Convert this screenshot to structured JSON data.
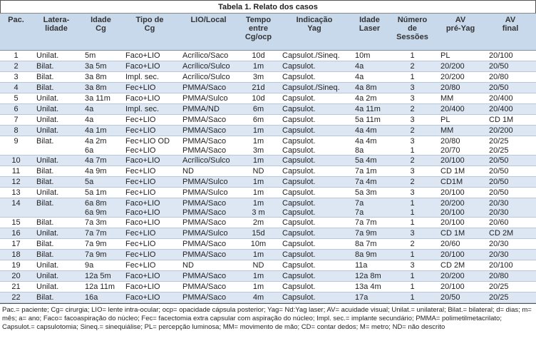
{
  "title": "Tabela 1. Relato dos casos",
  "table": {
    "header": [
      "Pac.",
      "Latera-\nlidade",
      "Idade\nCg",
      "Tipo de\nCg",
      "LIO/Local",
      "Tempo\nentre\nCg/ocp",
      "Indicação\nYag",
      "Idade\nLaser",
      "Número\nde\nSessões",
      "AV\npré-Yag",
      "AV\nfinal"
    ],
    "rows": [
      [
        "1",
        "Unilat.",
        "5m",
        "Faco+LIO",
        "Acrílico/Saco",
        "10d",
        "Capsulot./Sineq.",
        "10m",
        "1",
        "PL",
        "20/100"
      ],
      [
        "2",
        "Bilat.",
        "3a 5m",
        "Faco+LIO",
        "Acrílico/Sulco",
        "1m",
        "Capsulot.",
        "4a",
        "2",
        "20/200",
        "20/50"
      ],
      [
        "3",
        "Bilat.",
        "3a 8m",
        "Impl. sec.",
        "Acrílico/Sulco",
        "3m",
        "Capsulot.",
        "4a",
        "1",
        "20/200",
        "20/80"
      ],
      [
        "4",
        "Bilat.",
        "3a 8m",
        "Fec+LIO",
        "PMMA/Saco",
        "21d",
        "Capsulot./Sineq.",
        "4a 8m",
        "3",
        "20/80",
        "20/50"
      ],
      [
        "5",
        "Unilat.",
        "3a 11m",
        "Faco+LIO",
        "PMMA/Sulco",
        "10d",
        "Capsulot.",
        "4a 2m",
        "3",
        "MM",
        "20/400"
      ],
      [
        "6",
        "Unilat.",
        "4a",
        "Impl. sec.",
        "PMMA/ND",
        "6m",
        "Capsulot.",
        "4a 11m",
        "2",
        "20/400",
        "20/400"
      ],
      [
        "7",
        "Unilat.",
        "4a",
        "Fec+LIO",
        "PMMA/Saco",
        "6m",
        "Capsulot.",
        "5a 11m",
        "3",
        "PL",
        "CD 1M"
      ],
      [
        "8",
        "Unilat.",
        "4a 1m",
        "Fec+LIO",
        "PMMA/Saco",
        "1m",
        "Capsulot.",
        "4a 4m",
        "2",
        "MM",
        "20/200"
      ],
      [
        "9",
        "Bilat.",
        "4a 2m\n6a",
        "Fec+LIO OD\nFec+LIO",
        "PMMA/Saco\nPMMA/Saco",
        "1m\n3m",
        "Capsulot.\nCapsulot.",
        "4a 4m\n8a",
        "3\n1",
        "20/80\n20/70",
        "20/25\n20/25"
      ],
      [
        "10",
        "Unilat.",
        "4a 7m",
        "Faco+LIO",
        "Acrílico/Sulco",
        "1m",
        "Capsulot.",
        "5a 4m",
        "2",
        "20/100",
        "20/50"
      ],
      [
        "11",
        "Bilat.",
        "4a 9m",
        "Fec+LIO",
        "ND",
        "ND",
        "Capsulot.",
        "7a 1m",
        "3",
        "CD 1M",
        "20/50"
      ],
      [
        "12",
        "Bilat.",
        "5a",
        "Fec+LIO",
        "PMMA/Sulco",
        "1m",
        "Capsulot.",
        "7a 4m",
        "2",
        "CD1M",
        "20/50"
      ],
      [
        "13",
        "Unilat.",
        "5a 1m",
        "Fec+LIO",
        "PMMA/Sulco",
        "1m",
        "Capsulot.",
        "5a 3m",
        "3",
        "20/100",
        "20/50"
      ],
      [
        "14",
        "Bilat.",
        "6a 8m\n6a 9m",
        "Faco+LIO\nFaco+LIO",
        "PMMA/Saco\nPMMA/Saco",
        "1m\n3 m",
        "Capsulot.\nCapsulot.",
        "7a\n7a",
        "1\n1",
        "20/200\n20/100",
        "20/30\n20/30"
      ],
      [
        "15",
        "Bilat.",
        "7a 3m",
        "Faco+LIO",
        "PMMA/Saco",
        "2m",
        "Capsulot.",
        "7a 7m",
        "1",
        "20/100",
        "20/60"
      ],
      [
        "16",
        "Unilat.",
        "7a 7m",
        "Fec+LIO",
        "PMMA/Sulco",
        "15d",
        "Capsulot.",
        "7a 9m",
        "3",
        "CD 1M",
        "CD 2M"
      ],
      [
        "17",
        "Bilat.",
        "7a 9m",
        "Fec+LIO",
        "PMMA/Saco",
        "10m",
        "Capsulot.",
        "8a 7m",
        "2",
        "20/60",
        "20/30"
      ],
      [
        "18",
        "Bilat.",
        "7a 9m",
        "Fec+LIO",
        "PMMA/Saco",
        "1m",
        "Capsulot.",
        "8a 9m",
        "1",
        "20/100",
        "20/30"
      ],
      [
        "19",
        "Unilat.",
        "9a",
        "Fec+LIO",
        "ND",
        "ND",
        "Capsulot.",
        "11a",
        "3",
        "CD 2M",
        "20/100"
      ],
      [
        "20",
        "Unilat.",
        "12a 5m",
        "Faco+LIO",
        "PMMA/Saco",
        "1m",
        "Capsulot.",
        "12a 8m",
        "1",
        "20/200",
        "20/80"
      ],
      [
        "21",
        "Unilat.",
        "12a 11m",
        "Faco+LIO",
        "PMMA/Saco",
        "1m",
        "Capsulot.",
        "13a 4m",
        "1",
        "20/100",
        "20/25"
      ],
      [
        "22",
        "Bilat.",
        "16a",
        "Faco+LIO",
        "PMMA/Saco",
        "4m",
        "Capsulot.",
        "17a",
        "1",
        "20/50",
        "20/25"
      ]
    ]
  },
  "footnote": "Pac.= paciente; Cg= cirurgia; LIO= lente intra-ocular; ocp= opacidade cápsula posterior; Yag= Nd:Yag laser; AV= acuidade visual; Unilat.= unilateral; Bilat.= bilateral; d= dias; m= mês; a= ano; Faco= facoaspiração do núcleo; Fec= facectomia extra capsular com aspiração do núcleo; Impl. sec.= implante secundário; PMMA= polimetilmetacrilato; Capsulot.= capsulotomia; Sineq.= sinequiálise; PL= percepção luminosa; MM= movimento de mão; CD= contar dedos; M= metro; ND= não descrito"
}
